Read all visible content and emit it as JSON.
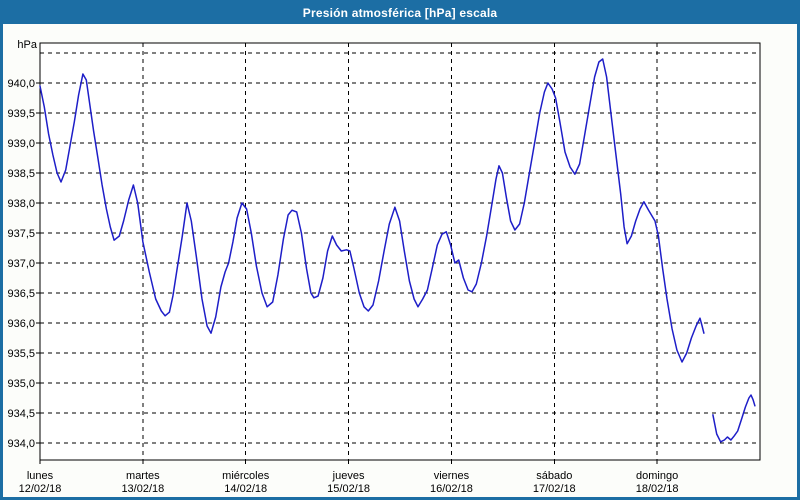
{
  "window": {
    "title": "Presión atmosférica [hPa] escala",
    "title_bar_color": "#1C6EA4",
    "frame_color": "#1C6EA4",
    "page_background": "#FCFDFA"
  },
  "chart_data": {
    "type": "line",
    "title": "Presión atmosférica [hPa] escala",
    "unit_label": "hPa",
    "line_color": "#1E1EC8",
    "grid_color": "#000000",
    "grid_style": "dashed",
    "plot_background": "#FFFFFF",
    "ylabel": "hPa",
    "ylim": [
      933.717,
      940.667
    ],
    "y_ticks": [
      {
        "value": 940.0,
        "label": "940,0"
      },
      {
        "value": 939.5,
        "label": "939,5"
      },
      {
        "value": 939.0,
        "label": "939,0"
      },
      {
        "value": 938.5,
        "label": "938,5"
      },
      {
        "value": 938.0,
        "label": "938,0"
      },
      {
        "value": 937.5,
        "label": "937,5"
      },
      {
        "value": 937.0,
        "label": "937,0"
      },
      {
        "value": 936.5,
        "label": "936,5"
      },
      {
        "value": 936.0,
        "label": "936,0"
      },
      {
        "value": 935.5,
        "label": "935,5"
      },
      {
        "value": 935.0,
        "label": "935,0"
      },
      {
        "value": 934.5,
        "label": "934,5"
      },
      {
        "value": 934.0,
        "label": "934,0"
      }
    ],
    "y_grid_extra_values": [
      940.5
    ],
    "x_unit": "hours",
    "xlim": [
      0,
      168
    ],
    "x_ticks": [
      {
        "hour": 0,
        "day": "lunes",
        "date": "12/02/18"
      },
      {
        "hour": 24,
        "day": "martes",
        "date": "13/02/18"
      },
      {
        "hour": 48,
        "day": "miércoles",
        "date": "14/02/18"
      },
      {
        "hour": 72,
        "day": "jueves",
        "date": "15/02/18"
      },
      {
        "hour": 96,
        "day": "viernes",
        "date": "16/02/18"
      },
      {
        "hour": 120,
        "day": "sábado",
        "date": "17/02/18"
      },
      {
        "hour": 144,
        "day": "domingo",
        "date": "18/02/18"
      }
    ],
    "x_grid_hours": [
      24,
      48,
      72,
      96,
      120,
      144
    ],
    "series": [
      {
        "segments": [
          [
            [
              0,
              939.95
            ],
            [
              1,
              939.6
            ],
            [
              2,
              939.15
            ],
            [
              3,
              938.8
            ],
            [
              4,
              938.5
            ],
            [
              4.9,
              938.35
            ],
            [
              6,
              938.55
            ],
            [
              7,
              938.95
            ],
            [
              8,
              939.35
            ],
            [
              9,
              939.8
            ],
            [
              10,
              940.15
            ],
            [
              10.8,
              940.05
            ],
            [
              11.5,
              939.7
            ],
            [
              12.5,
              939.2
            ],
            [
              13.5,
              938.75
            ],
            [
              14.5,
              938.3
            ],
            [
              15.5,
              937.9
            ],
            [
              16.4,
              937.6
            ],
            [
              17.3,
              937.38
            ],
            [
              18.5,
              937.45
            ],
            [
              19.5,
              937.7
            ],
            [
              20.7,
              938.05
            ],
            [
              21.8,
              938.3
            ],
            [
              22.8,
              938.0
            ],
            [
              24,
              937.35
            ],
            [
              25.5,
              936.85
            ],
            [
              27,
              936.4
            ],
            [
              28.3,
              936.2
            ],
            [
              29.2,
              936.12
            ],
            [
              30.2,
              936.18
            ],
            [
              31,
              936.45
            ],
            [
              32,
              936.9
            ],
            [
              33.2,
              937.45
            ],
            [
              34.3,
              938.0
            ],
            [
              35.3,
              937.7
            ],
            [
              36.5,
              937.1
            ],
            [
              37.8,
              936.4
            ],
            [
              39,
              935.95
            ],
            [
              39.9,
              935.83
            ],
            [
              41,
              936.1
            ],
            [
              42.2,
              936.6
            ],
            [
              43.2,
              936.85
            ],
            [
              44,
              937.0
            ],
            [
              45,
              937.35
            ],
            [
              46,
              937.75
            ],
            [
              47.1,
              938.0
            ],
            [
              48.2,
              937.9
            ],
            [
              49.3,
              937.5
            ],
            [
              50.5,
              936.95
            ],
            [
              51.8,
              936.5
            ],
            [
              53,
              936.27
            ],
            [
              54.3,
              936.35
            ],
            [
              55.5,
              936.8
            ],
            [
              56.8,
              937.4
            ],
            [
              57.9,
              937.8
            ],
            [
              58.8,
              937.88
            ],
            [
              59.9,
              937.85
            ],
            [
              61,
              937.5
            ],
            [
              62.2,
              936.9
            ],
            [
              63.2,
              936.5
            ],
            [
              63.9,
              936.42
            ],
            [
              64.9,
              936.45
            ],
            [
              66,
              936.75
            ],
            [
              67.1,
              937.2
            ],
            [
              68.2,
              937.45
            ],
            [
              69.2,
              937.3
            ],
            [
              70.3,
              937.2
            ],
            [
              71.5,
              937.22
            ],
            [
              72.3,
              937.2
            ],
            [
              73.3,
              936.9
            ],
            [
              74.5,
              936.5
            ],
            [
              75.6,
              936.27
            ],
            [
              76.6,
              936.2
            ],
            [
              77.7,
              936.3
            ],
            [
              79,
              936.7
            ],
            [
              80.3,
              937.2
            ],
            [
              81.5,
              937.65
            ],
            [
              82.8,
              937.93
            ],
            [
              83.9,
              937.7
            ],
            [
              85,
              937.2
            ],
            [
              86.2,
              936.7
            ],
            [
              87.3,
              936.4
            ],
            [
              88.2,
              936.27
            ],
            [
              89.3,
              936.4
            ],
            [
              90.4,
              936.55
            ],
            [
              91.5,
              936.9
            ],
            [
              92.7,
              937.3
            ],
            [
              93.8,
              937.48
            ],
            [
              94.8,
              937.52
            ],
            [
              95.8,
              937.3
            ],
            [
              96.8,
              937.0
            ],
            [
              97.7,
              937.05
            ],
            [
              98.8,
              936.75
            ],
            [
              99.9,
              936.55
            ],
            [
              100.8,
              936.52
            ],
            [
              101.8,
              936.65
            ],
            [
              103,
              937.0
            ],
            [
              104.2,
              937.45
            ],
            [
              105.5,
              938.0
            ],
            [
              106.4,
              938.4
            ],
            [
              107.1,
              938.62
            ],
            [
              107.9,
              938.5
            ],
            [
              108.8,
              938.1
            ],
            [
              109.8,
              937.7
            ],
            [
              110.8,
              937.55
            ],
            [
              111.9,
              937.65
            ],
            [
              113,
              938.0
            ],
            [
              114.2,
              938.5
            ],
            [
              115.4,
              939.0
            ],
            [
              116.6,
              939.5
            ],
            [
              117.7,
              939.85
            ],
            [
              118.5,
              940.0
            ],
            [
              119.5,
              939.9
            ],
            [
              120.3,
              939.75
            ],
            [
              121.3,
              939.35
            ],
            [
              122.5,
              938.85
            ],
            [
              123.7,
              938.6
            ],
            [
              124.8,
              938.48
            ],
            [
              125.9,
              938.65
            ],
            [
              127,
              939.1
            ],
            [
              128.2,
              939.6
            ],
            [
              129.4,
              940.1
            ],
            [
              130.4,
              940.35
            ],
            [
              131.3,
              940.4
            ],
            [
              132.2,
              940.1
            ],
            [
              133.2,
              939.5
            ],
            [
              134.3,
              938.85
            ],
            [
              135.5,
              938.15
            ],
            [
              136.3,
              937.6
            ],
            [
              137,
              937.32
            ],
            [
              138,
              937.45
            ],
            [
              139,
              937.7
            ],
            [
              140,
              937.9
            ],
            [
              140.9,
              938.02
            ],
            [
              142,
              937.88
            ],
            [
              143.5,
              937.7
            ],
            [
              144.3,
              937.45
            ],
            [
              145.3,
              936.9
            ],
            [
              146.3,
              936.4
            ],
            [
              147.5,
              935.9
            ],
            [
              148.6,
              935.55
            ],
            [
              149.8,
              935.35
            ],
            [
              150.9,
              935.5
            ],
            [
              152,
              935.75
            ],
            [
              153.1,
              935.95
            ],
            [
              154,
              936.08
            ],
            [
              154.5,
              935.95
            ],
            [
              154.9,
              935.83
            ]
          ],
          [
            [
              157,
              934.47
            ],
            [
              157.9,
              934.15
            ],
            [
              158.8,
              934.02
            ],
            [
              159.7,
              934.05
            ],
            [
              160.4,
              934.1
            ],
            [
              161.2,
              934.05
            ],
            [
              162,
              934.12
            ],
            [
              162.8,
              934.2
            ],
            [
              163.7,
              934.4
            ],
            [
              164.6,
              934.6
            ],
            [
              165.4,
              934.75
            ],
            [
              165.9,
              934.8
            ],
            [
              166.4,
              934.72
            ],
            [
              166.8,
              934.62
            ]
          ]
        ]
      }
    ]
  }
}
